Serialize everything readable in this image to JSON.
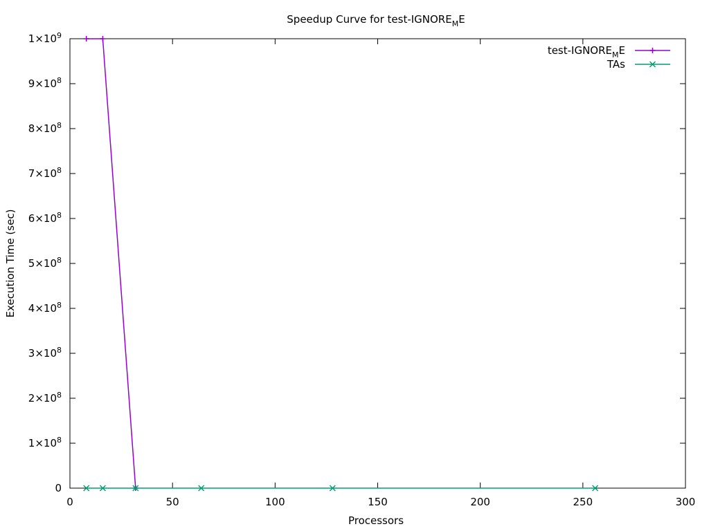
{
  "chart_data": {
    "type": "line",
    "title": [
      "Speedup Curve for test-IGNORE",
      "M",
      "E"
    ],
    "xlabel": "Processors",
    "ylabel": "Execution Time (sec)",
    "xlim": [
      0,
      300
    ],
    "xticks": [
      0,
      50,
      100,
      150,
      200,
      250,
      300
    ],
    "ylim": [
      0,
      1000000000
    ],
    "yticks": [
      0,
      {
        "value": 100000000,
        "label": [
          "1×10",
          "8"
        ]
      },
      {
        "value": 200000000,
        "label": [
          "2×10",
          "8"
        ]
      },
      {
        "value": 300000000,
        "label": [
          "3×10",
          "8"
        ]
      },
      {
        "value": 400000000,
        "label": [
          "4×10",
          "8"
        ]
      },
      {
        "value": 500000000,
        "label": [
          "5×10",
          "8"
        ]
      },
      {
        "value": 600000000,
        "label": [
          "6×10",
          "8"
        ]
      },
      {
        "value": 700000000,
        "label": [
          "7×10",
          "8"
        ]
      },
      {
        "value": 800000000,
        "label": [
          "8×10",
          "8"
        ]
      },
      {
        "value": 900000000,
        "label": [
          "9×10",
          "8"
        ]
      },
      {
        "value": 1000000000,
        "label": [
          "1×10",
          "9"
        ]
      }
    ],
    "legend": "top-right",
    "series": [
      {
        "name": [
          "test-IGNORE",
          "M",
          "E"
        ],
        "color": "#9400d3",
        "marker": "plus",
        "x": [
          8,
          16,
          32
        ],
        "values": [
          1000000000,
          1000000000,
          0
        ]
      },
      {
        "name": "TAs",
        "color": "#009e73",
        "marker": "cross",
        "x": [
          8,
          16,
          32,
          64,
          128,
          256
        ],
        "values": [
          0,
          0,
          0,
          0,
          0,
          0
        ]
      }
    ]
  }
}
